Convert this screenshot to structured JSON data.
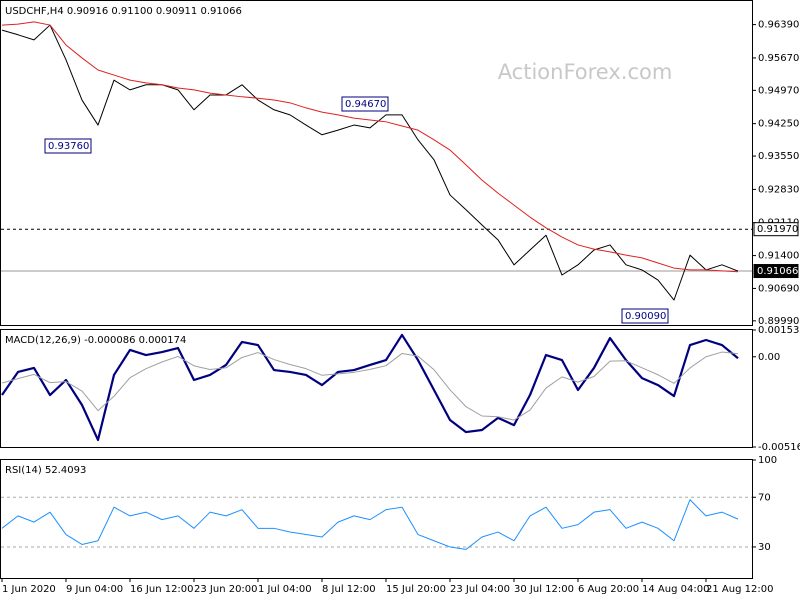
{
  "chart_data": [
    {
      "type": "line",
      "title": "USDCHF,H4  0.90916 0.91100 0.90911 0.91066",
      "watermark": "ActionForex.com",
      "categories": [
        "1 Jun 2020",
        null,
        null,
        null,
        "9 Jun 04:00",
        null,
        null,
        null,
        "16 Jun 12:00",
        null,
        null,
        null,
        "23 Jun 20:00",
        null,
        null,
        null,
        "1 Jul 04:00",
        null,
        null,
        null,
        "8 Jul 12:00",
        null,
        null,
        null,
        "15 Jul 20:00",
        null,
        null,
        null,
        "23 Jul 04:00",
        null,
        null,
        null,
        "30 Jul 12:00",
        null,
        null,
        null,
        "6 Aug 20:00",
        null,
        null,
        null,
        "14 Aug 04:00",
        null,
        null,
        null,
        "21 Aug 12:00",
        null,
        null
      ],
      "series": [
        {
          "color": "#000000",
          "values": [
            0.9627,
            0.9617,
            0.9606,
            0.9638,
            0.9563,
            0.9476,
            0.9422,
            0.9519,
            0.9498,
            0.9509,
            0.9509,
            0.9498,
            0.9455,
            0.9487,
            0.9487,
            0.9509,
            0.9476,
            0.9455,
            0.9444,
            0.9422,
            0.9401,
            0.9411,
            0.9422,
            0.9416,
            0.9444,
            0.9444,
            0.939,
            0.9347,
            0.9271,
            0.9239,
            0.9206,
            0.9174,
            0.912,
            0.9152,
            0.9184,
            0.9098,
            0.912,
            0.9152,
            0.9163,
            0.912,
            0.9109,
            0.9087,
            0.9044,
            0.9141,
            0.9109,
            0.912,
            0.91066
          ]
        },
        {
          "color": "#e02020",
          "values": [
            0.9638,
            0.964,
            0.9645,
            0.9638,
            0.9595,
            0.9567,
            0.9541,
            0.953,
            0.9519,
            0.9513,
            0.9509,
            0.9502,
            0.9498,
            0.9491,
            0.9487,
            0.9483,
            0.948,
            0.9476,
            0.947,
            0.9459,
            0.945,
            0.9444,
            0.9437,
            0.9433,
            0.9429,
            0.942,
            0.9411,
            0.939,
            0.9368,
            0.9336,
            0.9303,
            0.9275,
            0.9249,
            0.9223,
            0.92,
            0.918,
            0.9163,
            0.9154,
            0.9148,
            0.9141,
            0.9135,
            0.9124,
            0.9113,
            0.9109,
            0.9109,
            0.9107,
            0.9105
          ]
        }
      ],
      "ylim": [
        0.899,
        0.969
      ],
      "yticks": [
        {
          "value": 0.9639,
          "label": "0.96390"
        },
        {
          "value": 0.9567,
          "label": "0.95670"
        },
        {
          "value": 0.9497,
          "label": "0.94970"
        },
        {
          "value": 0.9425,
          "label": "0.94250"
        },
        {
          "value": 0.9355,
          "label": "0.93550"
        },
        {
          "value": 0.9283,
          "label": "0.92830"
        },
        {
          "value": 0.9211,
          "label": "0.92110"
        },
        {
          "value": 0.914,
          "label": "0.91400"
        },
        {
          "value": 0.9069,
          "label": "0.90690"
        },
        {
          "value": 0.8999,
          "label": "0.89990"
        }
      ],
      "hlines": [
        {
          "value": 0.9197,
          "label": "0.91970",
          "style": "dashed"
        },
        {
          "value": 0.91066,
          "label": "0.91066",
          "style": "solid"
        }
      ],
      "annotations": [
        {
          "text": "0.93760"
        },
        {
          "text": "0.94670"
        },
        {
          "text": "0.90090"
        }
      ]
    },
    {
      "type": "macd",
      "title": "MACD(12,26,9) -0.000086 0.000174",
      "series": [
        {
          "color": "#000080",
          "values": [
            -0.00219,
            -0.00087,
            -0.00064,
            -0.00219,
            -0.00133,
            -0.00276,
            -0.00476,
            -0.00104,
            0.00039,
            0.0001,
            0.00027,
            0.0005,
            -0.00133,
            -0.00104,
            -0.00047,
            0.00085,
            0.00067,
            -0.00076,
            -0.00087,
            -0.00104,
            -0.00162,
            -0.00087,
            -0.00076,
            -0.00047,
            -0.00019,
            0.00125,
            -0.00019,
            -0.0019,
            -0.00362,
            -0.00431,
            -0.00419,
            -0.0035,
            -0.00391,
            -0.00219,
            0.0001,
            -0.00019,
            -0.0019,
            -0.00064,
            0.00107,
            -0.00019,
            -0.00122,
            -0.00162,
            -0.00225,
            0.00067,
            0.00096,
            0.00067,
            -8.6e-05
          ]
        },
        {
          "color": "#a0a0a0",
          "values": [
            -0.0015,
            -0.00125,
            -0.00101,
            -0.00148,
            -0.00142,
            -0.00196,
            -0.00308,
            -0.00226,
            -0.0012,
            -0.00068,
            -0.0003,
            2e-05,
            -0.00052,
            -0.00073,
            -0.00063,
            -4e-05,
            0.00024,
            -0.00016,
            -0.00044,
            -0.00068,
            -0.00106,
            -0.00098,
            -0.00089,
            -0.00072,
            -0.00051,
            0.00019,
            4e-05,
            -0.00074,
            -0.00189,
            -0.00286,
            -0.00339,
            -0.00343,
            -0.00362,
            -0.00305,
            -0.00179,
            -0.00115,
            -0.00145,
            -0.00113,
            -0.00025,
            -0.00023,
            -0.00063,
            -0.00103,
            -0.00152,
            -0.00064,
            0.0,
            0.00027,
            0.000174
          ]
        }
      ],
      "ylim": [
        -0.005164,
        0.001532
      ],
      "yticks": [
        0.001532,
        {
          "value": 0,
          "label": "0.00"
        },
        -0.005164
      ]
    },
    {
      "type": "line",
      "title": "RSI(14) 52.4093",
      "series": [
        {
          "color": "#1e90ff",
          "values": [
            45,
            55,
            50,
            58,
            40,
            32,
            35,
            62,
            55,
            58,
            52,
            55,
            45,
            58,
            55,
            60,
            45,
            45,
            42,
            40,
            38,
            50,
            55,
            52,
            60,
            62,
            40,
            35,
            30,
            28,
            38,
            42,
            35,
            55,
            62,
            45,
            48,
            58,
            60,
            45,
            50,
            45,
            35,
            68,
            55,
            58,
            52.4093
          ]
        }
      ],
      "ylim": [
        5,
        100
      ],
      "yticks": [
        100,
        70,
        30
      ],
      "levels": [
        70,
        30
      ]
    }
  ]
}
